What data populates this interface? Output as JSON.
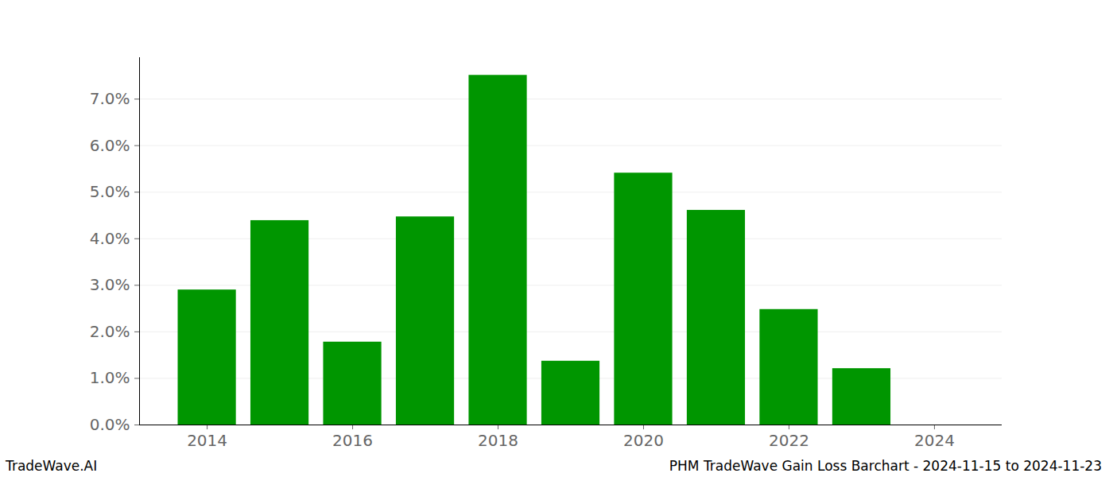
{
  "chart_data": {
    "type": "bar",
    "title": "PHM TradeWave Gain Loss Barchart - 2024-11-15 to 2024-11-23",
    "source": "TradeWave.AI",
    "x": [
      2014,
      2015,
      2016,
      2017,
      2018,
      2019,
      2020,
      2021,
      2022,
      2023
    ],
    "values": [
      2.9,
      4.39,
      1.78,
      4.47,
      7.51,
      1.37,
      5.41,
      4.61,
      2.48,
      1.21
    ],
    "color": "#009600",
    "xlim": [
      2013.07,
      2024.93
    ],
    "xticks": [
      2014,
      2016,
      2018,
      2020,
      2022,
      2024
    ],
    "ylim": [
      0,
      7.89
    ],
    "yticks": [
      {
        "value": 0,
        "label": "0.0%"
      },
      {
        "value": 1,
        "label": "1.0%"
      },
      {
        "value": 2,
        "label": "2.0%"
      },
      {
        "value": 3,
        "label": "3.0%"
      },
      {
        "value": 4,
        "label": "4.0%"
      },
      {
        "value": 5,
        "label": "5.0%"
      },
      {
        "value": 6,
        "label": "6.0%"
      },
      {
        "value": 7,
        "label": "7.0%"
      }
    ],
    "grid": true
  }
}
